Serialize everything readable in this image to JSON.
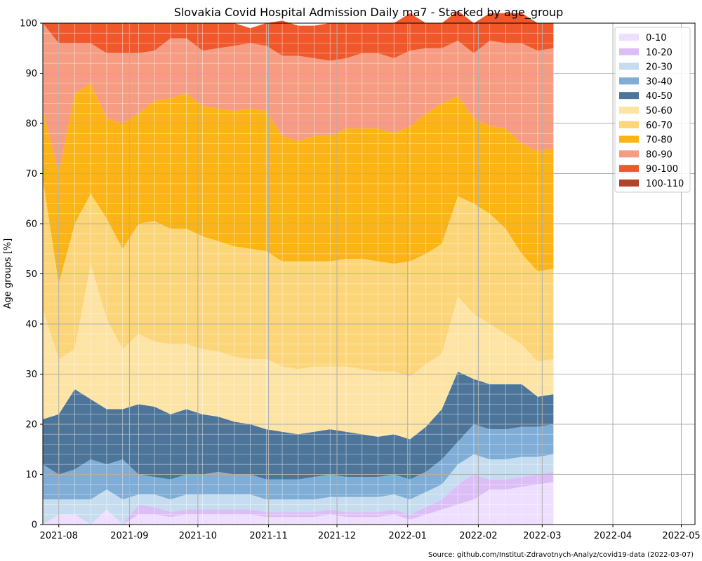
{
  "chart_data": {
    "type": "area",
    "stacked": true,
    "title": "Slovakia Covid Hospital Admission Daily ma7 - Stacked by age_group",
    "xlabel": "",
    "ylabel": "Age groups [%]",
    "ylim": [
      0,
      100
    ],
    "xlim": [
      "2021-07-25",
      "2022-05-07"
    ],
    "x_ticks": [
      "2021-08",
      "2021-09",
      "2021-10",
      "2021-11",
      "2021-12",
      "2022-01",
      "2022-02",
      "2022-03",
      "2022-04",
      "2022-05"
    ],
    "y_ticks": [
      0,
      10,
      20,
      30,
      40,
      50,
      60,
      70,
      80,
      90,
      100
    ],
    "grid": true,
    "legend_position": "top-right",
    "x": [
      "2021-07-25",
      "2021-08-01",
      "2021-08-08",
      "2021-08-15",
      "2021-08-22",
      "2021-08-29",
      "2021-09-05",
      "2021-09-12",
      "2021-09-19",
      "2021-09-26",
      "2021-10-03",
      "2021-10-10",
      "2021-10-17",
      "2021-10-24",
      "2021-10-31",
      "2021-11-07",
      "2021-11-14",
      "2021-11-21",
      "2021-11-28",
      "2021-12-05",
      "2021-12-12",
      "2021-12-19",
      "2021-12-26",
      "2022-01-02",
      "2022-01-09",
      "2022-01-16",
      "2022-01-23",
      "2022-01-30",
      "2022-02-06",
      "2022-02-13",
      "2022-02-20",
      "2022-02-27",
      "2022-03-06"
    ],
    "series": [
      {
        "name": "0-10",
        "color": "#eedeff",
        "values": [
          0,
          2,
          2,
          0,
          3,
          0,
          2,
          2,
          1.5,
          2,
          2,
          2,
          2,
          2,
          1.5,
          1.5,
          1.5,
          1.5,
          2,
          1.5,
          1.5,
          1.5,
          2,
          1,
          2,
          3,
          4,
          5,
          7,
          7,
          7.5,
          8,
          8.5
        ]
      },
      {
        "name": "10-20",
        "color": "#dcbef7",
        "values": [
          0,
          0,
          0,
          0,
          0,
          0,
          2,
          1.5,
          1,
          1,
          1,
          1,
          1,
          1,
          1,
          1,
          1,
          1,
          1,
          1,
          1,
          1,
          1,
          1,
          1.5,
          2,
          4,
          5,
          2,
          2,
          2,
          2,
          2
        ]
      },
      {
        "name": "20-30",
        "color": "#c6ddf0",
        "values": [
          5,
          3,
          3,
          5,
          4,
          5,
          2,
          2.5,
          2.5,
          3,
          3,
          3,
          3,
          3,
          2.5,
          2.5,
          2.5,
          2.5,
          2.5,
          3,
          3,
          3,
          3,
          3,
          3,
          3,
          4,
          4,
          4,
          4,
          4,
          3.5,
          3.5
        ]
      },
      {
        "name": "30-40",
        "color": "#7fadd6",
        "values": [
          7,
          5,
          6,
          8,
          5,
          8,
          4,
          3.5,
          4,
          4,
          4,
          4.5,
          4,
          4,
          4,
          4,
          4,
          4.5,
          4.5,
          4,
          4,
          4,
          4,
          4,
          4,
          5,
          4.5,
          6,
          6,
          6,
          6,
          6,
          6
        ]
      },
      {
        "name": "40-50",
        "color": "#4c7599",
        "values": [
          9,
          12,
          16,
          12,
          11,
          10,
          14,
          14,
          13,
          13,
          12,
          11,
          10.5,
          10,
          10,
          9.5,
          9,
          9,
          9,
          9,
          8.5,
          8,
          8,
          8,
          9,
          10,
          14,
          9,
          9,
          9,
          8.5,
          6,
          6
        ]
      },
      {
        "name": "50-60",
        "color": "#fde3a4",
        "values": [
          22,
          11,
          8,
          27,
          18,
          12,
          14,
          13,
          14,
          13,
          13,
          13,
          13,
          13,
          14,
          13,
          13,
          13,
          12.5,
          13,
          13,
          13,
          12.5,
          12.5,
          12.5,
          11,
          15,
          13,
          12,
          10,
          8,
          7,
          7
        ]
      },
      {
        "name": "60-70",
        "color": "#fbd577",
        "values": [
          26,
          15,
          25,
          14,
          20,
          20,
          22,
          24,
          23,
          23,
          22.5,
          22,
          22,
          22,
          21.5,
          21,
          21.5,
          21,
          21,
          21.5,
          22,
          22,
          21.5,
          23,
          22,
          22,
          20,
          22,
          22,
          21,
          18,
          18,
          18
        ]
      },
      {
        "name": "70-80",
        "color": "#fbb316",
        "values": [
          14,
          22,
          26,
          22,
          20,
          25,
          22,
          24,
          26,
          27,
          26,
          26.5,
          27,
          28,
          28,
          25,
          24,
          25,
          25,
          26,
          26,
          26.5,
          26,
          27,
          28,
          28,
          20,
          17,
          17.5,
          20,
          22,
          24,
          24
        ]
      },
      {
        "name": "80-90",
        "color": "#f59c82",
        "values": [
          17,
          26,
          10,
          8,
          13,
          14,
          12,
          10,
          12,
          11,
          11,
          12,
          13,
          13,
          13,
          16,
          17,
          15.5,
          15,
          14,
          15,
          15,
          15,
          15,
          13,
          11,
          11,
          13,
          17,
          17,
          20,
          20,
          20
        ]
      },
      {
        "name": "90-100",
        "color": "#f0582b",
        "values": [
          0,
          4,
          4,
          4,
          6,
          6,
          6,
          5.5,
          3,
          3,
          5.5,
          5,
          4.5,
          3,
          4.5,
          7,
          6,
          6.5,
          7.5,
          7,
          6,
          6,
          7,
          7.5,
          5,
          5,
          6,
          6,
          5.5,
          6,
          6,
          5.5,
          5
        ]
      },
      {
        "name": "100-110",
        "color": "#b5412b",
        "values": [
          0,
          0,
          0,
          0,
          0,
          0,
          0,
          0,
          0,
          0,
          0,
          0,
          0,
          0,
          0,
          0,
          0,
          0,
          0,
          0,
          0,
          0,
          0,
          0,
          0,
          0,
          0,
          0,
          0,
          0,
          0,
          0,
          0
        ]
      }
    ],
    "source": "Source: github.com/Institut-Zdravotnych-Analyz/covid19-data (2022-03-07)"
  }
}
